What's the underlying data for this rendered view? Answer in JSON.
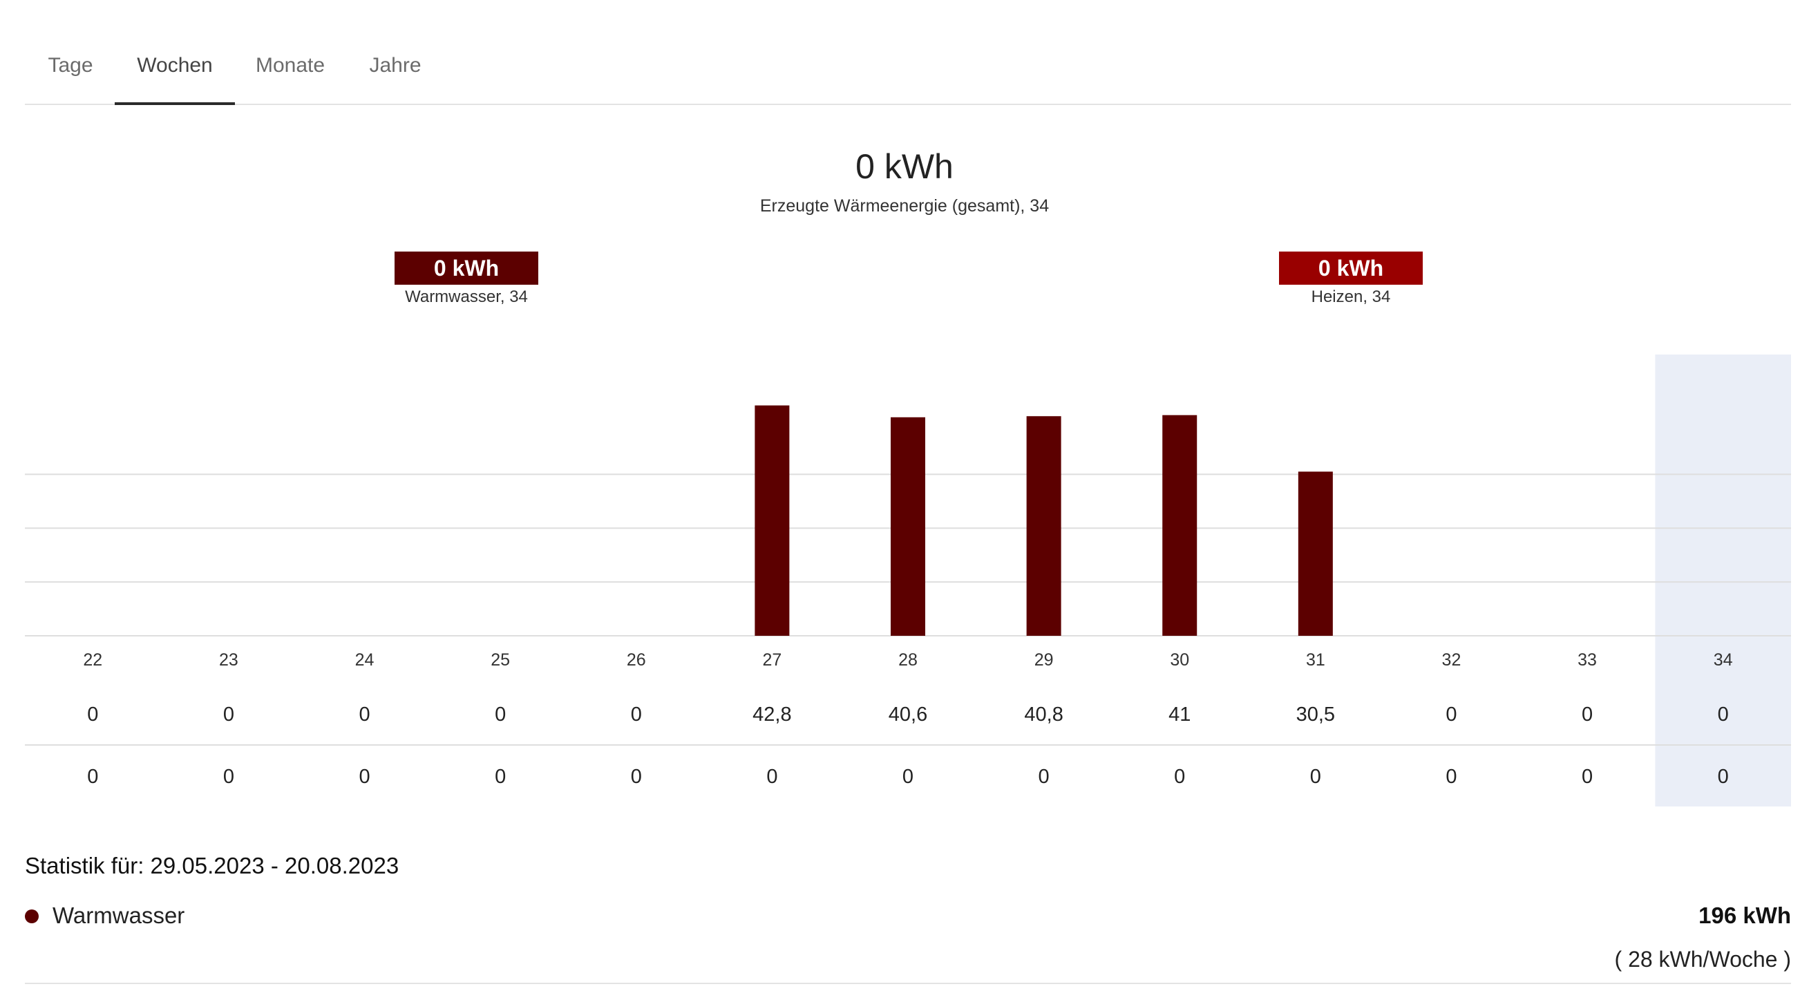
{
  "tabs": [
    {
      "label": "Tage"
    },
    {
      "label": "Wochen",
      "active": true
    },
    {
      "label": "Monate"
    },
    {
      "label": "Jahre"
    }
  ],
  "summary": {
    "total_value": "0 kWh",
    "total_label": "Erzeugte Wärmeenergie (gesamt), 34"
  },
  "badges": {
    "warmwasser": {
      "value": "0 kWh",
      "label": "Warmwasser, 34",
      "color": "#5c0000"
    },
    "heizen": {
      "value": "0 kWh",
      "label": "Heizen, 34",
      "color": "#990000"
    }
  },
  "colors": {
    "bar": "#5c0000",
    "selected_column": "#eaeef7",
    "gridline": "#dedede"
  },
  "chart_data": {
    "type": "bar",
    "categories": [
      "22",
      "23",
      "24",
      "25",
      "26",
      "27",
      "28",
      "29",
      "30",
      "31",
      "32",
      "33",
      "34"
    ],
    "series": [
      {
        "name": "Warmwasser",
        "values": [
          0,
          0,
          0,
          0,
          0,
          42.8,
          40.6,
          40.8,
          41,
          30.5,
          0,
          0,
          0
        ],
        "color": "#5c0000"
      },
      {
        "name": "Heizen",
        "values": [
          0,
          0,
          0,
          0,
          0,
          0,
          0,
          0,
          0,
          0,
          0,
          0,
          0
        ],
        "color": "#990000"
      }
    ],
    "ylim": [
      0,
      52
    ],
    "grid": true,
    "selected_category": "34",
    "value_rows": [
      [
        "0",
        "0",
        "0",
        "0",
        "0",
        "42,8",
        "40,6",
        "40,8",
        "41",
        "30,5",
        "0",
        "0",
        "0"
      ],
      [
        "0",
        "0",
        "0",
        "0",
        "0",
        "0",
        "0",
        "0",
        "0",
        "0",
        "0",
        "0",
        "0"
      ]
    ]
  },
  "stats": {
    "title": "Statistik für: 29.05.2023 - 20.08.2023",
    "legend_name": "Warmwasser",
    "legend_total": "196 kWh",
    "legend_rate": "( 28 kWh/Woche )"
  }
}
